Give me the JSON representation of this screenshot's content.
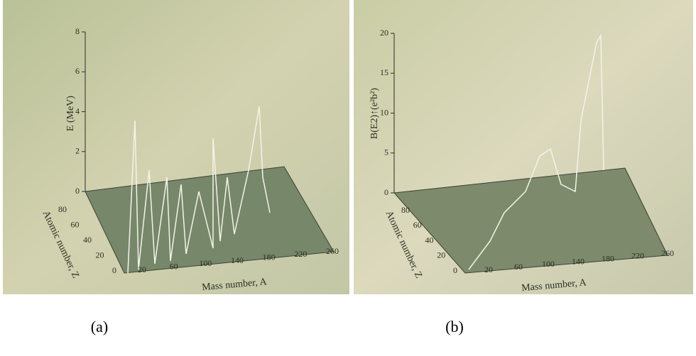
{
  "panels": [
    {
      "caption": "(a)",
      "y_axis": {
        "label": "E (MeV)",
        "ticks": [
          "0",
          "2",
          "4",
          "6",
          "8"
        ]
      },
      "z_axis": {
        "label": "Atomic number, Z",
        "ticks": [
          "0",
          "20",
          "40",
          "60",
          "80"
        ]
      },
      "x_axis": {
        "label": "Mass number, A",
        "ticks": [
          "20",
          "60",
          "100",
          "140",
          "180",
          "220",
          "260"
        ]
      }
    },
    {
      "caption": "(b)",
      "y_axis": {
        "label": "B(E2)↑(e²b²)",
        "ticks": [
          "0",
          "5",
          "10",
          "15",
          "20"
        ]
      },
      "z_axis": {
        "label": "Atomic number, Z",
        "ticks": [
          "0",
          "20",
          "40",
          "60",
          "80"
        ]
      },
      "x_axis": {
        "label": "Mass number, A",
        "ticks": [
          "20",
          "60",
          "100",
          "140",
          "180",
          "220",
          "260"
        ]
      }
    }
  ]
}
